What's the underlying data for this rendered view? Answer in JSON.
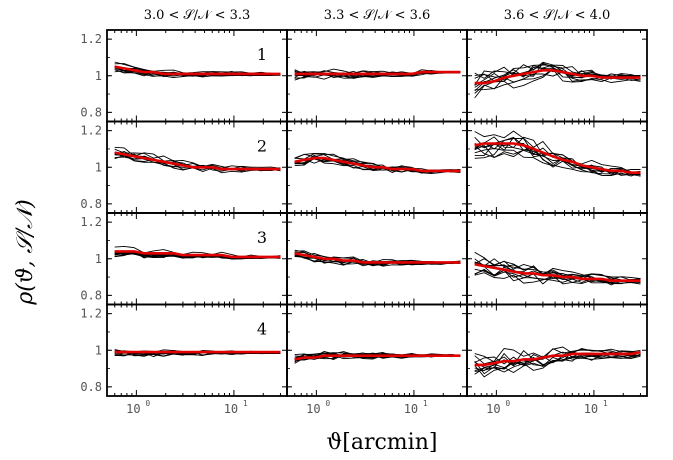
{
  "figure": {
    "ylabel": "ρ(ϑ, 𝒮/𝒩)",
    "xlabel": "ϑ[arcmin]",
    "colors": {
      "realization": "#000000",
      "mean": "#e00000",
      "frame": "#000000"
    }
  },
  "chart_data": {
    "type": "line",
    "grid": false,
    "xscale": "log",
    "xlim": [
      0.5,
      35
    ],
    "ylim": [
      0.75,
      1.25
    ],
    "column_titles": [
      "3.0 < 𝒮/𝒩 < 3.3",
      "3.3 < 𝒮/𝒩 < 3.6",
      "3.6 < 𝒮/𝒩 < 4.0"
    ],
    "row_labels": [
      "1",
      "2",
      "3",
      "4"
    ],
    "y_ticks": [
      {
        "value": 0.8,
        "label": "0.8"
      },
      {
        "value": 1.0,
        "label": "1"
      },
      {
        "value": 1.2,
        "label": "1.2"
      }
    ],
    "x_ticks": [
      {
        "value": 1,
        "base": "10",
        "exp": "0"
      },
      {
        "value": 10,
        "base": "10",
        "exp": "1"
      }
    ],
    "x": [
      0.6,
      0.75,
      0.95,
      1.2,
      1.5,
      1.9,
      2.4,
      3.0,
      3.8,
      4.8,
      6.0,
      7.5,
      9.5,
      12,
      15,
      19,
      24,
      30
    ],
    "n_realizations": 10,
    "panels": [
      {
        "row": 1,
        "col": 1,
        "mean": [
          1.05,
          1.04,
          1.03,
          1.02,
          1.02,
          1.01,
          1.01,
          1.01,
          1.01,
          1.01,
          1.01,
          1.01,
          1.01,
          1.01,
          1.01,
          1.01,
          1.01,
          1.01
        ],
        "scatter": 0.03
      },
      {
        "row": 1,
        "col": 2,
        "mean": [
          1.01,
          1.01,
          1.01,
          1.01,
          1.01,
          1.01,
          1.01,
          1.01,
          1.01,
          1.01,
          1.01,
          1.01,
          1.01,
          1.02,
          1.02,
          1.02,
          1.02,
          1.02
        ],
        "scatter": 0.035
      },
      {
        "row": 1,
        "col": 3,
        "mean": [
          0.96,
          0.96,
          0.97,
          0.99,
          1.0,
          1.01,
          1.02,
          1.03,
          1.03,
          1.02,
          1.01,
          1.0,
          1.0,
          0.99,
          0.99,
          0.99,
          0.99,
          0.99
        ],
        "scatter": 0.09
      },
      {
        "row": 2,
        "col": 1,
        "mean": [
          1.08,
          1.07,
          1.06,
          1.05,
          1.04,
          1.03,
          1.02,
          1.01,
          1.0,
          1.0,
          1.0,
          0.99,
          0.99,
          0.99,
          0.99,
          0.99,
          0.99,
          0.99
        ],
        "scatter": 0.04
      },
      {
        "row": 2,
        "col": 2,
        "mean": [
          1.03,
          1.04,
          1.05,
          1.05,
          1.04,
          1.03,
          1.02,
          1.01,
          1.0,
          1.0,
          0.99,
          0.99,
          0.99,
          0.98,
          0.98,
          0.98,
          0.98,
          0.98
        ],
        "scatter": 0.04
      },
      {
        "row": 2,
        "col": 3,
        "mean": [
          1.12,
          1.13,
          1.13,
          1.13,
          1.13,
          1.12,
          1.1,
          1.08,
          1.06,
          1.04,
          1.03,
          1.01,
          1.0,
          0.99,
          0.98,
          0.98,
          0.97,
          0.97
        ],
        "scatter": 0.1
      },
      {
        "row": 3,
        "col": 1,
        "mean": [
          1.04,
          1.04,
          1.04,
          1.03,
          1.03,
          1.03,
          1.03,
          1.02,
          1.02,
          1.02,
          1.02,
          1.02,
          1.01,
          1.01,
          1.01,
          1.01,
          1.01,
          1.01
        ],
        "scatter": 0.03
      },
      {
        "row": 3,
        "col": 2,
        "mean": [
          1.03,
          1.02,
          1.01,
          1.0,
          1.0,
          0.99,
          0.99,
          0.98,
          0.98,
          0.98,
          0.98,
          0.98,
          0.98,
          0.98,
          0.98,
          0.98,
          0.98,
          0.98
        ],
        "scatter": 0.035
      },
      {
        "row": 3,
        "col": 3,
        "mean": [
          0.97,
          0.96,
          0.95,
          0.94,
          0.93,
          0.92,
          0.92,
          0.91,
          0.91,
          0.9,
          0.9,
          0.89,
          0.89,
          0.89,
          0.88,
          0.88,
          0.88,
          0.88
        ],
        "scatter": 0.07
      },
      {
        "row": 4,
        "col": 1,
        "mean": [
          0.99,
          0.99,
          0.99,
          0.99,
          0.99,
          0.99,
          0.99,
          0.99,
          0.99,
          0.99,
          0.99,
          0.99,
          0.99,
          0.99,
          0.99,
          0.99,
          0.99,
          0.99
        ],
        "scatter": 0.03
      },
      {
        "row": 4,
        "col": 2,
        "mean": [
          0.95,
          0.96,
          0.96,
          0.97,
          0.97,
          0.97,
          0.97,
          0.97,
          0.97,
          0.97,
          0.97,
          0.97,
          0.97,
          0.97,
          0.97,
          0.97,
          0.97,
          0.97
        ],
        "scatter": 0.035
      },
      {
        "row": 4,
        "col": 3,
        "mean": [
          0.92,
          0.92,
          0.93,
          0.94,
          0.94,
          0.95,
          0.95,
          0.96,
          0.97,
          0.97,
          0.98,
          0.98,
          0.98,
          0.98,
          0.98,
          0.98,
          0.98,
          0.99
        ],
        "scatter": 0.09
      }
    ]
  }
}
